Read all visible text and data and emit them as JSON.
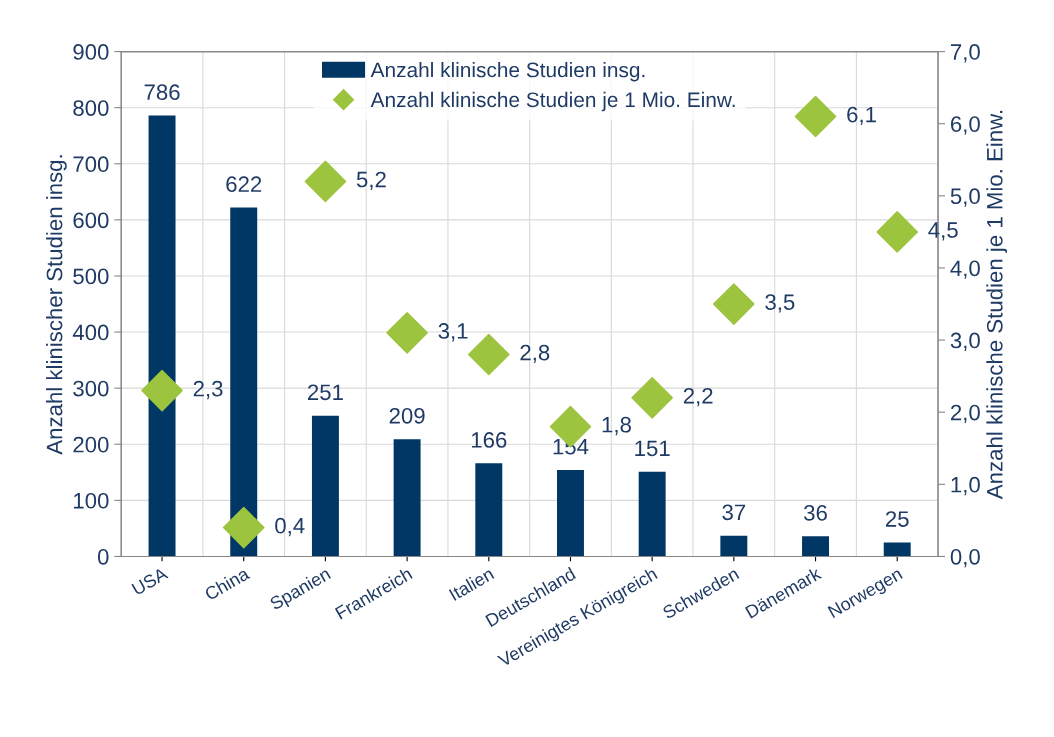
{
  "chart_data": {
    "type": "bar",
    "ylabel": "Anzahl klinischer Studien insg.",
    "y2label": "Anzahl klinische Studien je 1 Mio. Einw.",
    "categories": [
      "USA",
      "China",
      "Spanien",
      "Frankreich",
      "Italien",
      "Deutschland",
      "Vereinigtes Königreich",
      "Schweden",
      "Dänemark",
      "Norwegen"
    ],
    "series": [
      {
        "name": "Anzahl klinische Studien insg.",
        "color": "#003764",
        "values": [
          786,
          622,
          251,
          209,
          166,
          154,
          151,
          37,
          36,
          25
        ],
        "value_labels": [
          "786",
          "622",
          "251",
          "209",
          "166",
          "154",
          "151",
          "37",
          "36",
          "25"
        ]
      },
      {
        "name": "Anzahl klinische Studien je 1 Mio. Einw.",
        "type": "scatter",
        "axis": "y2",
        "marker": "diamond",
        "color": "#9dc43e",
        "values": [
          2.3,
          0.4,
          5.2,
          3.1,
          2.8,
          1.8,
          2.2,
          3.5,
          6.1,
          4.5
        ],
        "value_labels": [
          "2,3",
          "0,4",
          "5,2",
          "3,1",
          "2,8",
          "1,8",
          "2,2",
          "3,5",
          "6,1",
          "4,5"
        ]
      }
    ],
    "ylim": [
      0,
      900
    ],
    "yticks": [
      0,
      100,
      200,
      300,
      400,
      500,
      600,
      700,
      800,
      900
    ],
    "y2lim": [
      0,
      7
    ],
    "y2ticks": [
      {
        "value": 0,
        "label": "0,0"
      },
      {
        "value": 1,
        "label": "1,0"
      },
      {
        "value": 2,
        "label": "2,0"
      },
      {
        "value": 3,
        "label": "3,0"
      },
      {
        "value": 4,
        "label": "4,0"
      },
      {
        "value": 5,
        "label": "5,0"
      },
      {
        "value": 6,
        "label": "6,0"
      },
      {
        "value": 7,
        "label": "7,0"
      }
    ],
    "grid": true,
    "legend": "top"
  }
}
